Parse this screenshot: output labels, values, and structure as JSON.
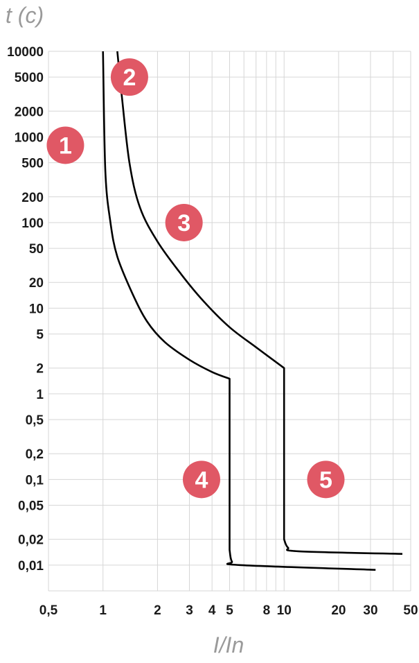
{
  "chart_data": {
    "type": "line",
    "title": "",
    "ylabel": "t (c)",
    "xlabel": "I/In",
    "x_scale": "log",
    "y_scale": "log",
    "xlim": [
      0.5,
      50
    ],
    "ylim": [
      0.005,
      10000
    ],
    "grid": true,
    "x_ticks": [
      {
        "value": 0.5,
        "label": "0,5"
      },
      {
        "value": 1,
        "label": "1"
      },
      {
        "value": 2,
        "label": "2"
      },
      {
        "value": 3,
        "label": "3"
      },
      {
        "value": 4,
        "label": "4"
      },
      {
        "value": 5,
        "label": "5"
      },
      {
        "value": 8,
        "label": "8"
      },
      {
        "value": 10,
        "label": "10"
      },
      {
        "value": 20,
        "label": "20"
      },
      {
        "value": 30,
        "label": "30"
      },
      {
        "value": 50,
        "label": "50"
      }
    ],
    "x_minor_grid": [
      6,
      7,
      9,
      40
    ],
    "y_ticks": [
      {
        "value": 10000,
        "label": "10000"
      },
      {
        "value": 5000,
        "label": "5000"
      },
      {
        "value": 2000,
        "label": "2000"
      },
      {
        "value": 1000,
        "label": "1000"
      },
      {
        "value": 500,
        "label": "500"
      },
      {
        "value": 200,
        "label": "200"
      },
      {
        "value": 100,
        "label": "100"
      },
      {
        "value": 50,
        "label": "50"
      },
      {
        "value": 20,
        "label": "20"
      },
      {
        "value": 10,
        "label": "10"
      },
      {
        "value": 5,
        "label": "5"
      },
      {
        "value": 2,
        "label": "2"
      },
      {
        "value": 1,
        "label": "1"
      },
      {
        "value": 0.5,
        "label": "0,5"
      },
      {
        "value": 0.2,
        "label": "0,2"
      },
      {
        "value": 0.1,
        "label": "0,1"
      },
      {
        "value": 0.05,
        "label": "0,05"
      },
      {
        "value": 0.02,
        "label": "0,02"
      },
      {
        "value": 0.01,
        "label": "0,01"
      }
    ],
    "y_minor_grid": [
      0.005
    ],
    "series": [
      {
        "points": [
          [
            1.0,
            10000
          ],
          [
            1.03,
            400
          ],
          [
            1.1,
            100
          ],
          [
            1.2,
            40
          ],
          [
            1.45,
            15
          ],
          [
            1.75,
            7
          ],
          [
            2.2,
            4
          ],
          [
            3.0,
            2.5
          ],
          [
            4.0,
            1.8
          ],
          [
            5.0,
            1.5
          ],
          [
            5.0,
            0.015
          ],
          [
            5.15,
            0.011
          ],
          [
            5.7,
            0.01
          ],
          [
            32,
            0.0088
          ]
        ]
      },
      {
        "points": [
          [
            1.2,
            10000
          ],
          [
            1.27,
            3000
          ],
          [
            1.4,
            500
          ],
          [
            1.6,
            150
          ],
          [
            2.0,
            60
          ],
          [
            2.7,
            25
          ],
          [
            3.6,
            12
          ],
          [
            5.0,
            6
          ],
          [
            7.0,
            3.5
          ],
          [
            10.0,
            2.0
          ],
          [
            10.0,
            0.02
          ],
          [
            10.5,
            0.016
          ],
          [
            12.0,
            0.0145
          ],
          [
            45,
            0.0135
          ]
        ]
      }
    ],
    "annotations": [
      {
        "label": "1",
        "x": 0.62,
        "y": 800
      },
      {
        "label": "2",
        "x": 1.4,
        "y": 5000
      },
      {
        "label": "3",
        "x": 2.8,
        "y": 100
      },
      {
        "label": "4",
        "x": 3.5,
        "y": 0.1
      },
      {
        "label": "5",
        "x": 17,
        "y": 0.1
      }
    ],
    "colors": {
      "curve": "#000000",
      "grid": "#d6d6d6",
      "badge": "#e05865",
      "axis_title": "#9a9a9a",
      "tick_text": "#1a1a1a"
    }
  }
}
